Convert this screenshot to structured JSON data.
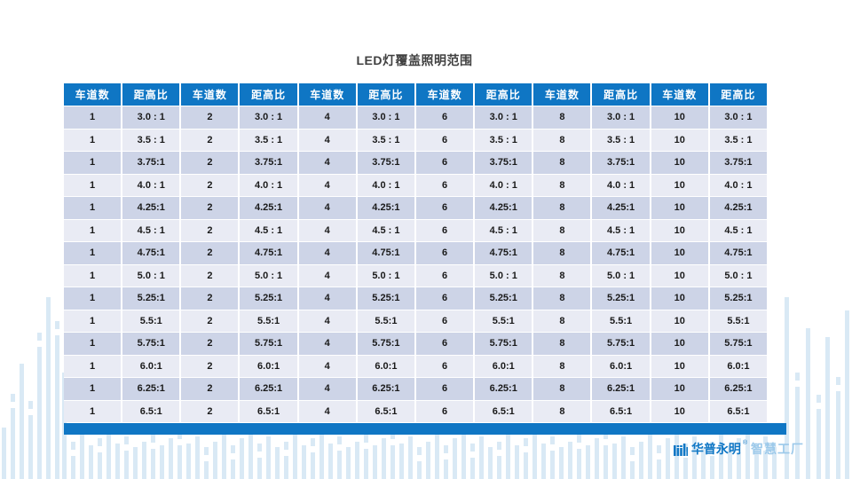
{
  "title": "LED灯覆盖照明范围",
  "table": {
    "lane_header": "车道数",
    "ratio_header": "距高比",
    "lanes": [
      "1",
      "2",
      "4",
      "6",
      "8",
      "10"
    ],
    "ratios": [
      "3.0 : 1",
      "3.5 : 1",
      "3.75:1",
      "4.0 : 1",
      "4.25:1",
      "4.5 : 1",
      "4.75:1",
      "5.0 : 1",
      "5.25:1",
      "5.5:1",
      "5.75:1",
      "6.0:1",
      "6.25:1",
      "6.5:1"
    ]
  },
  "branding": {
    "company": "华普永明",
    "reg_mark": "®",
    "suffix": "智慧工厂",
    "logo_icon": "skyline-bars-icon"
  },
  "colors": {
    "header_blue": "#0F76C4",
    "row_band_dark": "#CDD4E7",
    "row_band_light": "#E9EBF4",
    "footer_bar_blue": "#0F76C4",
    "deco_light_blue": "#D9E9F5",
    "brand_blue": "#1077C5",
    "brand_light_blue": "#9CC9EA",
    "title_gray": "#404040"
  }
}
